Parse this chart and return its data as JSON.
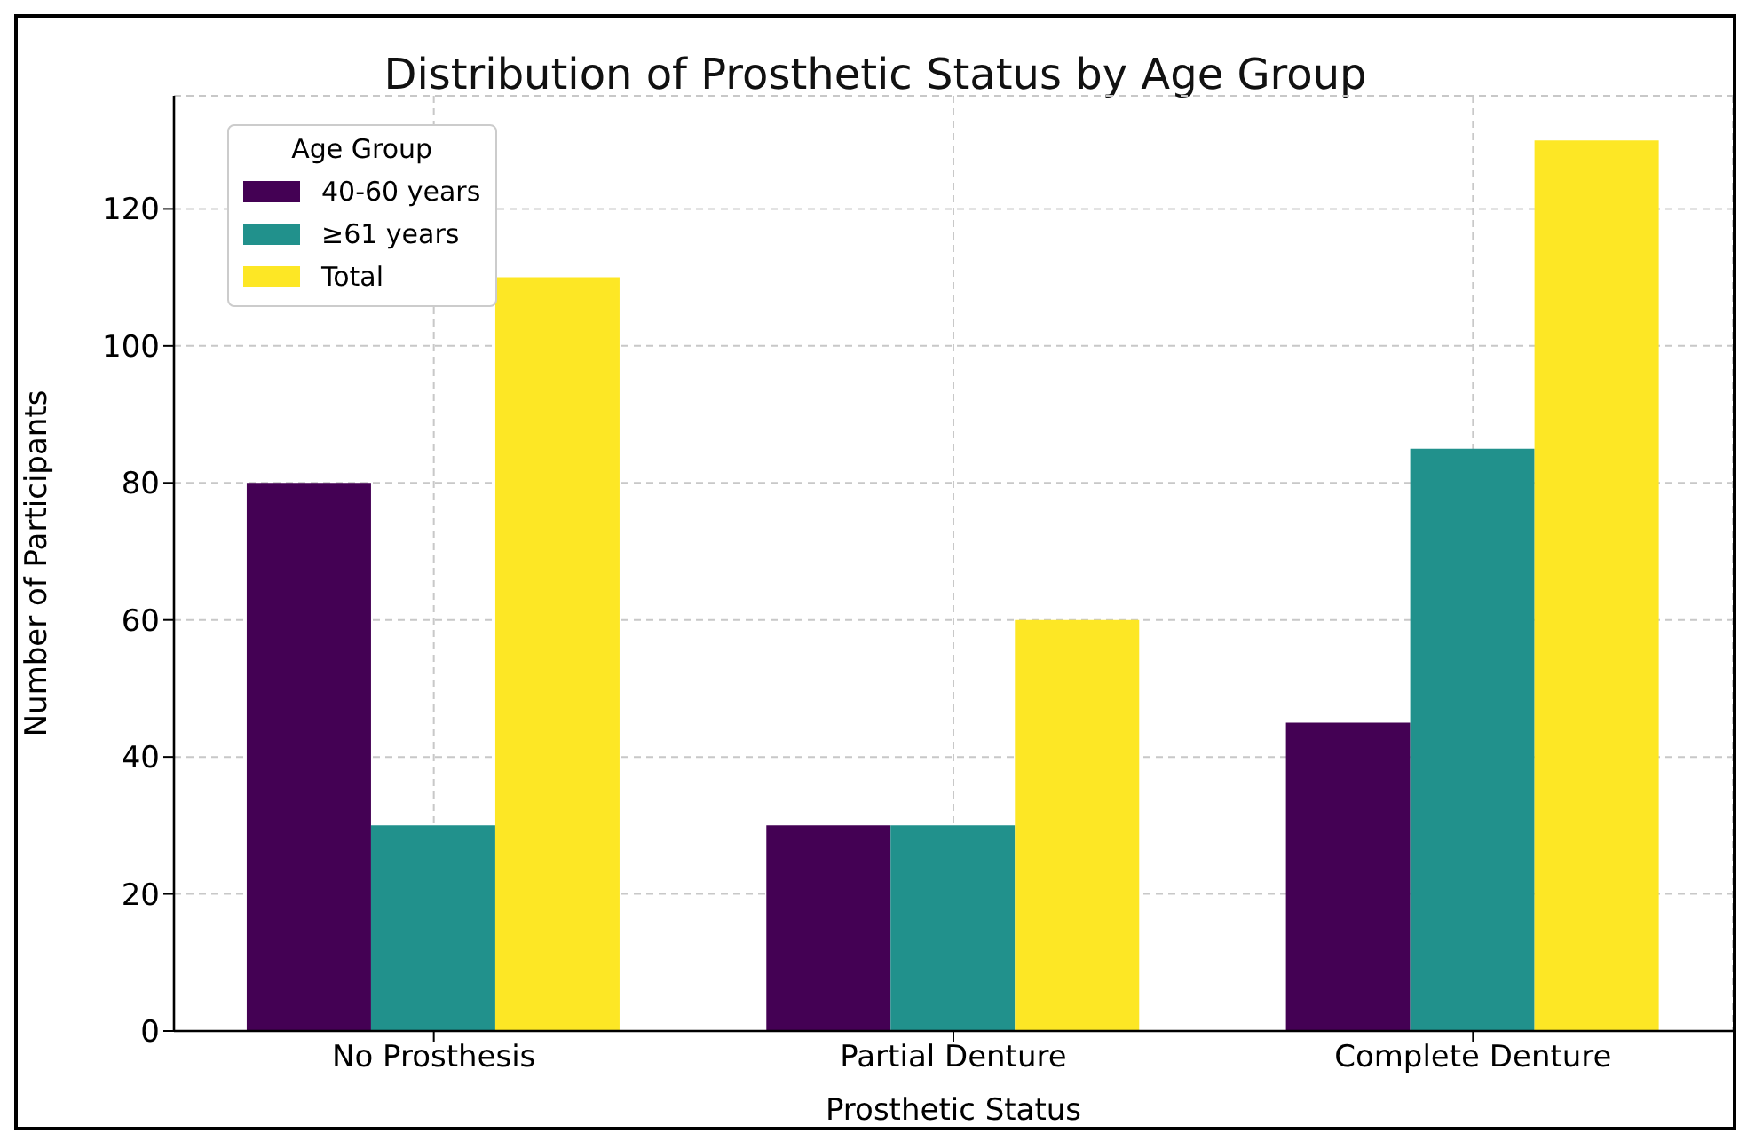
{
  "chart_data": {
    "type": "bar",
    "title": "Distribution of Prosthetic Status by Age Group",
    "xlabel": "Prosthetic Status",
    "ylabel": "Number of Participants",
    "legend_title": "Age Group",
    "categories": [
      "No Prosthesis",
      "Partial Denture",
      "Complete Denture"
    ],
    "series": [
      {
        "name": "40-60 years",
        "color": "#440154",
        "values": [
          80,
          30,
          45
        ]
      },
      {
        "name": "≥61 years",
        "color": "#21918c",
        "values": [
          30,
          30,
          85
        ]
      },
      {
        "name": "Total",
        "color": "#fde725",
        "values": [
          110,
          60,
          130
        ]
      }
    ],
    "ylim": [
      0,
      136.5
    ],
    "yticks": [
      0,
      20,
      40,
      60,
      80,
      100,
      120
    ],
    "grid": true,
    "legend": "top left"
  }
}
